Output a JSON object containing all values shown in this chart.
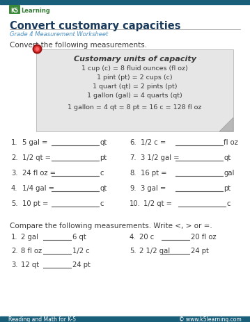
{
  "title": "Convert customary capacities",
  "subtitle": "Grade 4 Measurement Worksheet",
  "header_bar_color": "#1a5f7a",
  "title_color": "#1a3a5c",
  "subtitle_color": "#4a90c4",
  "body_bg": "#ffffff",
  "box_bg": "#e6e6e6",
  "box_title": "Customary units of capacity",
  "box_lines": [
    "1 cup (c) = 8 fluid ounces (fl oz)",
    "1 pint (pt) = 2 cups (c)",
    "1 quart (qt) = 2 pints (pt)",
    "1 gallon (gal) = 4 quarts (qt)",
    "",
    "1 gallon = 4 qt = 8 pt = 16 c = 128 fl oz"
  ],
  "intro": "Convert the following measurements.",
  "prob_left_labels": [
    "1.",
    "2.",
    "3.",
    "4.",
    "5."
  ],
  "prob_left_text": [
    "5 gal =",
    "1/2 qt =",
    "24 fl oz =",
    "1/4 gal =",
    "10 pt ="
  ],
  "prob_left_unit": [
    "qt",
    "pt",
    "c",
    "qt",
    "c"
  ],
  "prob_right_labels": [
    "6.",
    "7.",
    "8.",
    "9.",
    "10."
  ],
  "prob_right_text": [
    "1/2 c =",
    "3 1/2 gal =",
    "16 pt =",
    "3 gal =",
    "1/2 qt ="
  ],
  "prob_right_unit": [
    "fl oz",
    "qt",
    "gal",
    "pt",
    "c"
  ],
  "compare_intro": "Compare the following measurements. Write <, > or =.",
  "comp_left_labels": [
    "1.",
    "2.",
    "3."
  ],
  "comp_left_a": [
    "2 gal",
    "8 fl oz",
    "12 qt"
  ],
  "comp_left_b": [
    "6 qt",
    "1/2 c",
    "24 pt"
  ],
  "comp_right_labels": [
    "4.",
    "5."
  ],
  "comp_right_a": [
    "20 c",
    "2 1/2 gal"
  ],
  "comp_right_b": [
    "20 fl oz",
    "24 pt"
  ],
  "footer_left": "Reading and Math for K-5",
  "footer_right": "© www.k5learning.com",
  "text_color": "#3a3a3a",
  "line_color": "#aaaaaa",
  "logo_k5_color": "#3a7d3a",
  "logo_text_color": "#4a9d4a"
}
